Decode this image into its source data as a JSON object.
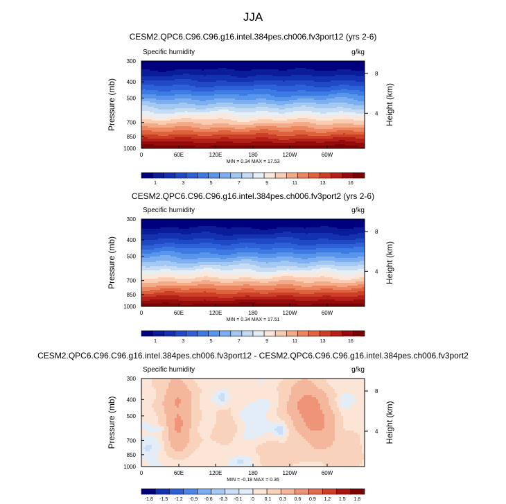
{
  "figure_title": "JJA",
  "colors": {
    "abs_levels": [
      "#00007f",
      "#0a1c98",
      "#1432b0",
      "#2049c6",
      "#2e61d7",
      "#3d7ae4",
      "#5895ec",
      "#7caff1",
      "#a2c8f4",
      "#c6dcf5",
      "#e6eef6",
      "#fbe8dd",
      "#f8cdb3",
      "#f2ab88",
      "#ea8760",
      "#dd633f",
      "#cb3f25",
      "#b22017",
      "#950b0b",
      "#7a0303"
    ],
    "diff_levels": [
      "#00007f",
      "#1433b1",
      "#2e61d7",
      "#4a86e8",
      "#7caff1",
      "#a6c9f3",
      "#cadff7",
      "#e3edf8",
      "#fbe5d7",
      "#f9d2bb",
      "#f5b79b",
      "#ee9478",
      "#e46c4d",
      "#cf3e26",
      "#a8150f",
      "#7a0303"
    ]
  },
  "chart_data": [
    {
      "type": "heatmap",
      "title": "CESM2.QPC6.C96.C96.g16.intel.384pes.ch006.fv3port12 (yrs 2-6)",
      "variable_label": "Specific humidity",
      "units_label": "g/kg",
      "xlabel": "",
      "ylabel": "Pressure (mb)",
      "right_label": "Height (km)",
      "x_ticks": [
        "0",
        "60E",
        "120E",
        "180",
        "120W",
        "60W"
      ],
      "y_ticks": [
        300,
        400,
        500,
        700,
        850,
        1000
      ],
      "height_ticks": [
        "8",
        "4"
      ],
      "min_max_label": "MIN =   0.34  MAX =   17.53",
      "colorbar_labels": [
        "1",
        "3",
        "5",
        "7",
        "9",
        "11",
        "13",
        "16"
      ],
      "levels": [
        0.5,
        1,
        2,
        3,
        4,
        5,
        6,
        7,
        8,
        9,
        10,
        11,
        12,
        13,
        14,
        15,
        16,
        17
      ],
      "field": "vertically stratified, max 17.53 at 1000 mb, min 0.34 at 300 mb"
    },
    {
      "type": "heatmap",
      "title": "CESM2.QPC6.C96.C96.g16.intel.384pes.ch006.fv3port2 (yrs 2-6)",
      "variable_label": "Specific humidity",
      "units_label": "g/kg",
      "xlabel": "",
      "ylabel": "Pressure (mb)",
      "right_label": "Height (km)",
      "x_ticks": [
        "0",
        "60E",
        "120E",
        "180",
        "120W",
        "60W"
      ],
      "y_ticks": [
        300,
        400,
        500,
        700,
        850,
        1000
      ],
      "height_ticks": [
        "8",
        "4"
      ],
      "min_max_label": "MIN =   0.34  MAX =   17.51",
      "colorbar_labels": [
        "1",
        "3",
        "5",
        "7",
        "9",
        "11",
        "13",
        "16"
      ],
      "levels": [
        0.5,
        1,
        2,
        3,
        4,
        5,
        6,
        7,
        8,
        9,
        10,
        11,
        12,
        13,
        14,
        15,
        16,
        17
      ],
      "field": "vertically stratified, max 17.51 at 1000 mb, min 0.34 at 300 mb"
    },
    {
      "type": "heatmap",
      "title": "CESM2.QPC6.C96.C96.g16.intel.384pes.ch006.fv3port12 - CESM2.QPC6.C96.C96.g16.intel.384pes.ch006.fv3port2",
      "variable_label": "Specific humidity",
      "units_label": "g/kg",
      "xlabel": "",
      "ylabel": "Pressure (mb)",
      "right_label": "Height (km)",
      "x_ticks": [
        "0",
        "60E",
        "120E",
        "180",
        "120W",
        "60W"
      ],
      "y_ticks": [
        300,
        400,
        500,
        700,
        850,
        1000
      ],
      "height_ticks": [
        "8",
        "4"
      ],
      "min_max_label": "MIN =  -0.18  MAX =   0.36",
      "colorbar_labels": [
        "-1.8",
        "-1.5",
        "-1.2",
        "-0.9",
        "-0.6",
        "-0.3",
        "-0.1",
        "0",
        "0.1",
        "0.3",
        "0.6",
        "0.9",
        "1.2",
        "1.5",
        "1.8"
      ],
      "field": "differences between -0.18 and 0.36; positive maxima near 40E and 135W around 500 mb"
    }
  ]
}
